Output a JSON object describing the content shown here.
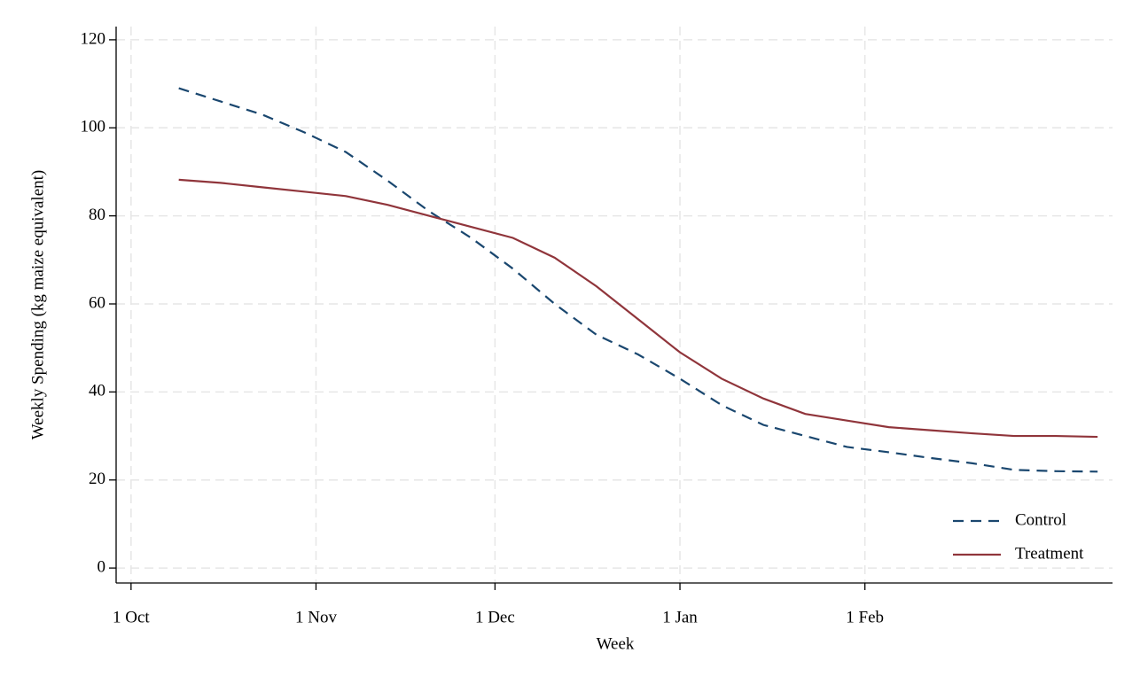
{
  "chart_data": {
    "type": "line",
    "x_label": "Week",
    "y_label": "Weekly Spending (kg maize equivalent)",
    "x": [
      8,
      15,
      22,
      29,
      36,
      43,
      50,
      57,
      64,
      71,
      78,
      85,
      92,
      99,
      106,
      113,
      120,
      127,
      134,
      141,
      148,
      155,
      162
    ],
    "series": [
      {
        "name": "Control",
        "color": "#1a476f",
        "dash": true,
        "values": [
          109,
          106,
          103,
          99,
          94.5,
          88,
          81,
          75,
          68,
          60,
          53,
          48.5,
          43,
          37,
          32.5,
          30,
          27.5,
          26.3,
          25,
          23.8,
          22.3,
          22,
          21.9
        ]
      },
      {
        "name": "Treatment",
        "color": "#90353b",
        "dash": false,
        "values": [
          88.2,
          87.5,
          86.5,
          85.5,
          84.5,
          82.5,
          80,
          77.5,
          75,
          70.5,
          64,
          56.5,
          49,
          43,
          38.5,
          35,
          33.5,
          32,
          31.3,
          30.6,
          30,
          30,
          29.8
        ]
      }
    ],
    "xlim": [
      -2.5,
      164.5
    ],
    "xticks": [
      {
        "value": 0,
        "label": "1 Oct"
      },
      {
        "value": 31,
        "label": "1 Nov"
      },
      {
        "value": 61,
        "label": "1 Dec"
      },
      {
        "value": 92,
        "label": "1 Jan"
      },
      {
        "value": 123,
        "label": "1 Feb"
      }
    ],
    "ylim": [
      -3.4,
      123
    ],
    "yticks": [
      0,
      20,
      40,
      60,
      80,
      100,
      120
    ],
    "grid": true,
    "legend": "bottom-right"
  }
}
